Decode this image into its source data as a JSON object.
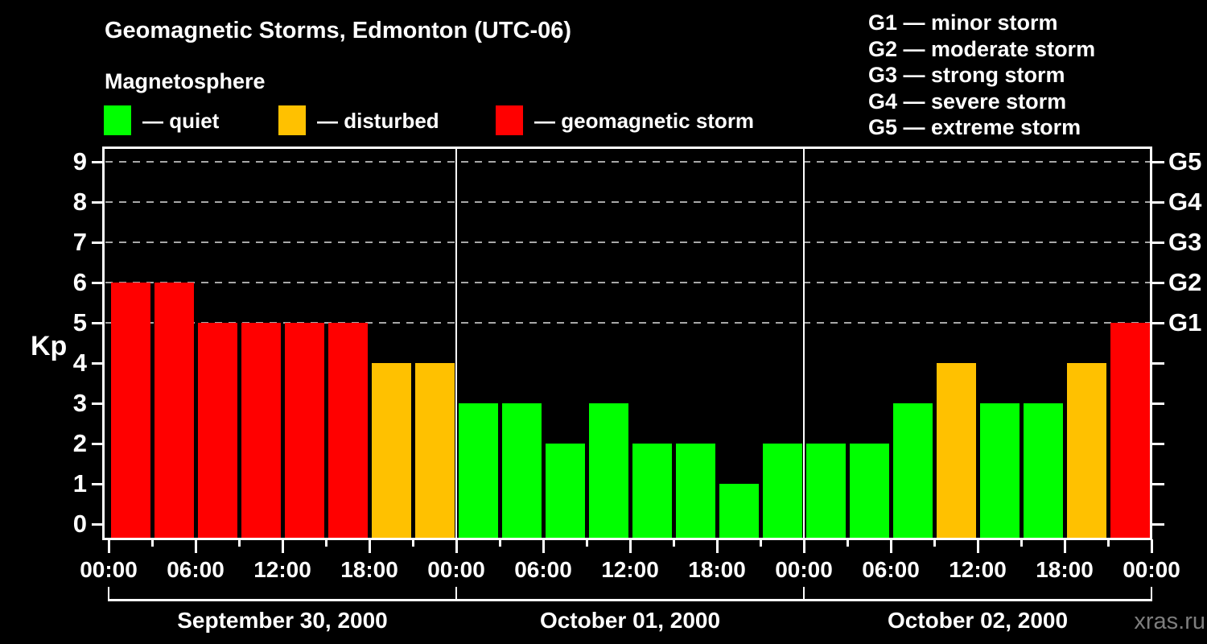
{
  "header": {
    "title": "Geomagnetic Storms, Edmonton (UTC-06)",
    "subtitle": "Magnetosphere",
    "kp_legend": [
      {
        "key": "quiet",
        "label": "— quiet",
        "color": "#00ff00"
      },
      {
        "key": "disturbed",
        "label": "— disturbed",
        "color": "#ffc100"
      },
      {
        "key": "storm",
        "label": "— geomagnetic storm",
        "color": "#ff0000"
      }
    ],
    "g_scale_legend": [
      "G1 — minor storm",
      "G2 — moderate storm",
      "G3 — strong storm",
      "G4 — severe storm",
      "G5 — extreme storm"
    ]
  },
  "watermark": "xras.ru",
  "chart_data": {
    "type": "bar",
    "title": "Geomagnetic Storms, Edmonton (UTC-06)",
    "subtitle": "Magnetosphere",
    "ylabel": "Kp",
    "ylim": [
      0,
      9
    ],
    "bar_interval_hours": 3,
    "grid": "dashed horizontal lines at Kp 5-9 only",
    "legend_position": "top",
    "yticks_left": [
      0,
      1,
      2,
      3,
      4,
      5,
      6,
      7,
      8,
      9
    ],
    "yticks_right_labels": {
      "5": "G1",
      "6": "G2",
      "7": "G3",
      "8": "G4",
      "9": "G5"
    },
    "x_tick_labels": [
      "00:00",
      "06:00",
      "12:00",
      "18:00",
      "00:00",
      "06:00",
      "12:00",
      "18:00",
      "00:00",
      "06:00",
      "12:00",
      "18:00",
      "00:00"
    ],
    "days": [
      {
        "date": "September 30, 2000",
        "values": [
          6,
          6,
          5,
          5,
          5,
          5,
          4,
          4
        ]
      },
      {
        "date": "October 01, 2000",
        "values": [
          3,
          3,
          2,
          3,
          2,
          2,
          1,
          2
        ]
      },
      {
        "date": "October 02, 2000",
        "values": [
          2,
          2,
          3,
          4,
          3,
          3,
          4,
          5
        ]
      }
    ],
    "color_rules": {
      "quiet_max_kp": 3,
      "disturbed_max_kp": 4,
      "colors": {
        "quiet": "#00ff00",
        "disturbed": "#ffc100",
        "storm": "#ff0000"
      }
    },
    "gridline_color": "#a8a8a8",
    "axis_color": "#ffffff",
    "background_color": "#000000"
  }
}
